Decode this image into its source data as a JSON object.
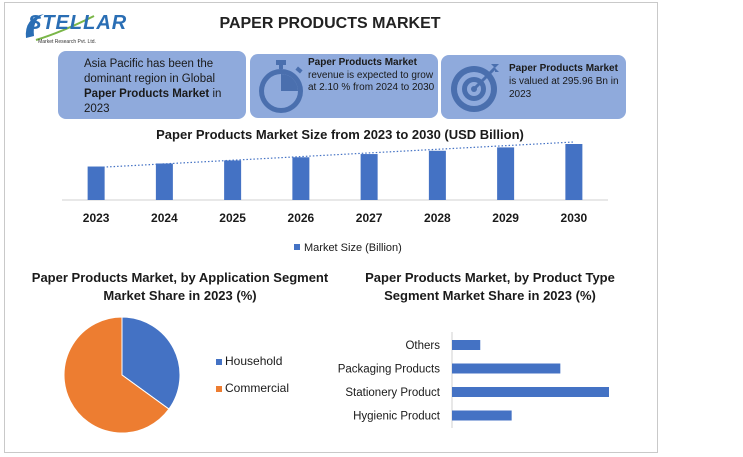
{
  "brand": {
    "logo_text": "STELLAR",
    "logo_sub": "Market Research Pvt. Ltd."
  },
  "page_title": "PAPER PRODUCTS MARKET",
  "cards": {
    "c1_pre": "Asia Pacific has been the dominant region in Global ",
    "c1_bold": "Paper Products Market",
    "c1_post": " in 2023",
    "c2_bold": "Paper Products Market",
    "c2_post": " revenue is expected to grow at 2.10 % from 2024 to 2030",
    "c3_bold": "Paper Products Market",
    "c3_post": " is valued at 295.96 Bn in 2023"
  },
  "icons": {
    "card2": "stopwatch-icon",
    "card3": "target-icon"
  },
  "colors": {
    "blue": "#4472c4",
    "orange": "#ed7d31",
    "card_bg": "#8faadc"
  },
  "chart_data": [
    {
      "type": "bar",
      "title": "Paper Products Market Size from 2023 to 2030 (USD Billion)",
      "categories": [
        "2023",
        "2024",
        "2025",
        "2026",
        "2027",
        "2028",
        "2029",
        "2030"
      ],
      "series": [
        {
          "name": "Market Size (Billion)",
          "values": [
            295.96,
            302.2,
            308.5,
            315.0,
            321.6,
            328.4,
            335.3,
            342.3
          ]
        }
      ],
      "trendline": "dotted linear",
      "legend": "bottom",
      "grid": false
    },
    {
      "type": "pie",
      "title": "Paper Products Market, by Application Segment Market Share in 2023 (%)",
      "categories": [
        "Household",
        "Commercial"
      ],
      "values": [
        35,
        65
      ],
      "legend": "right"
    },
    {
      "type": "bar",
      "orientation": "horizontal",
      "title": "Paper Products Market, by Product Type Segment Market Share in 2023 (%)",
      "categories": [
        "Others",
        "Packaging Products",
        "Stationery Product",
        "Hygienic Product"
      ],
      "values": [
        18,
        69,
        100,
        38
      ],
      "grid": false
    }
  ]
}
